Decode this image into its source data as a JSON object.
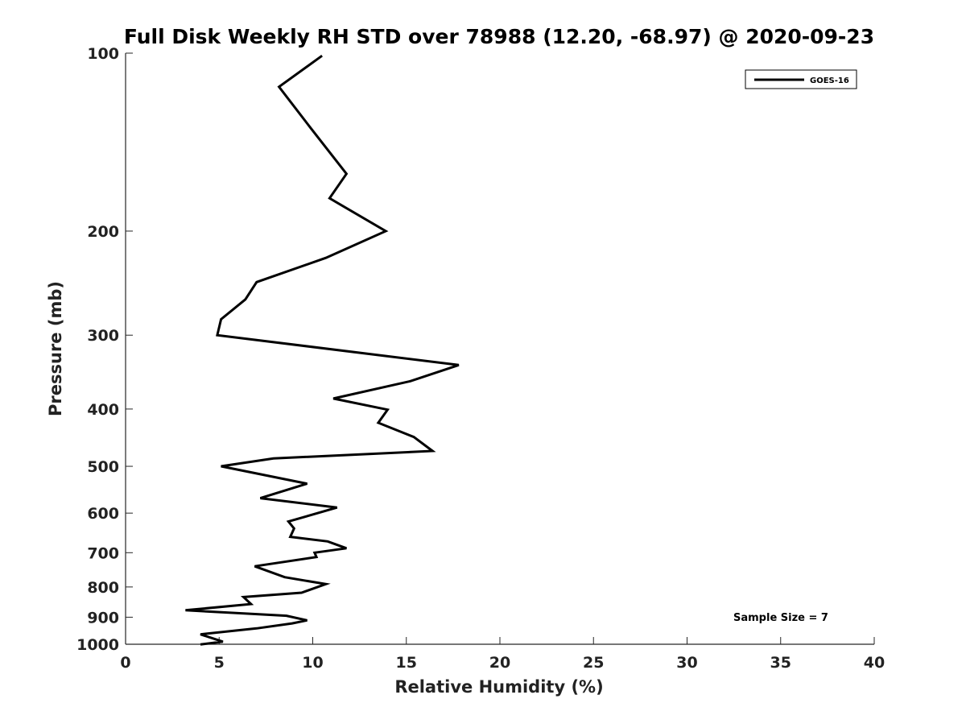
{
  "chart_data": {
    "type": "line",
    "title": "Full Disk Weekly RH STD over 78988 (12.20, -68.97) @ 2020-09-23",
    "xlabel": "Relative Humidity (%)",
    "ylabel": "Pressure (mb)",
    "xlim": [
      0,
      40
    ],
    "ylim": [
      1000,
      100
    ],
    "yscale": "log",
    "xticks": [
      0,
      5,
      10,
      15,
      20,
      25,
      30,
      35,
      40
    ],
    "yticks": [
      100,
      200,
      300,
      400,
      500,
      600,
      700,
      800,
      900,
      1000
    ],
    "grid": false,
    "legend_position": "top-right",
    "annotation": "Sample Size = 7",
    "series": [
      {
        "name": "GOES-16",
        "color": "#000000",
        "x": [
          10.5,
          8.2,
          9.9,
          11.8,
          10.9,
          13.9,
          10.7,
          7.0,
          6.4,
          5.1,
          4.9,
          17.8,
          15.2,
          11.1,
          14.0,
          13.5,
          15.4,
          16.4,
          7.9,
          5.1,
          9.7,
          7.2,
          11.3,
          8.7,
          9.0,
          8.8,
          10.8,
          11.8,
          10.1,
          10.2,
          6.9,
          8.5,
          10.7,
          9.4,
          6.3,
          6.7,
          3.2,
          8.6,
          9.7,
          8.9,
          7.0,
          4.0,
          5.2,
          4.0
        ],
        "y": [
          101,
          114,
          134,
          160,
          176,
          200,
          222,
          244,
          261,
          282,
          300,
          337,
          359,
          384,
          401,
          422,
          446,
          471,
          485,
          500,
          535,
          566,
          587,
          620,
          637,
          658,
          670,
          688,
          700,
          712,
          738,
          770,
          791,
          818,
          832,
          855,
          876,
          895,
          911,
          922,
          940,
          962,
          990,
          1001
        ]
      }
    ]
  }
}
